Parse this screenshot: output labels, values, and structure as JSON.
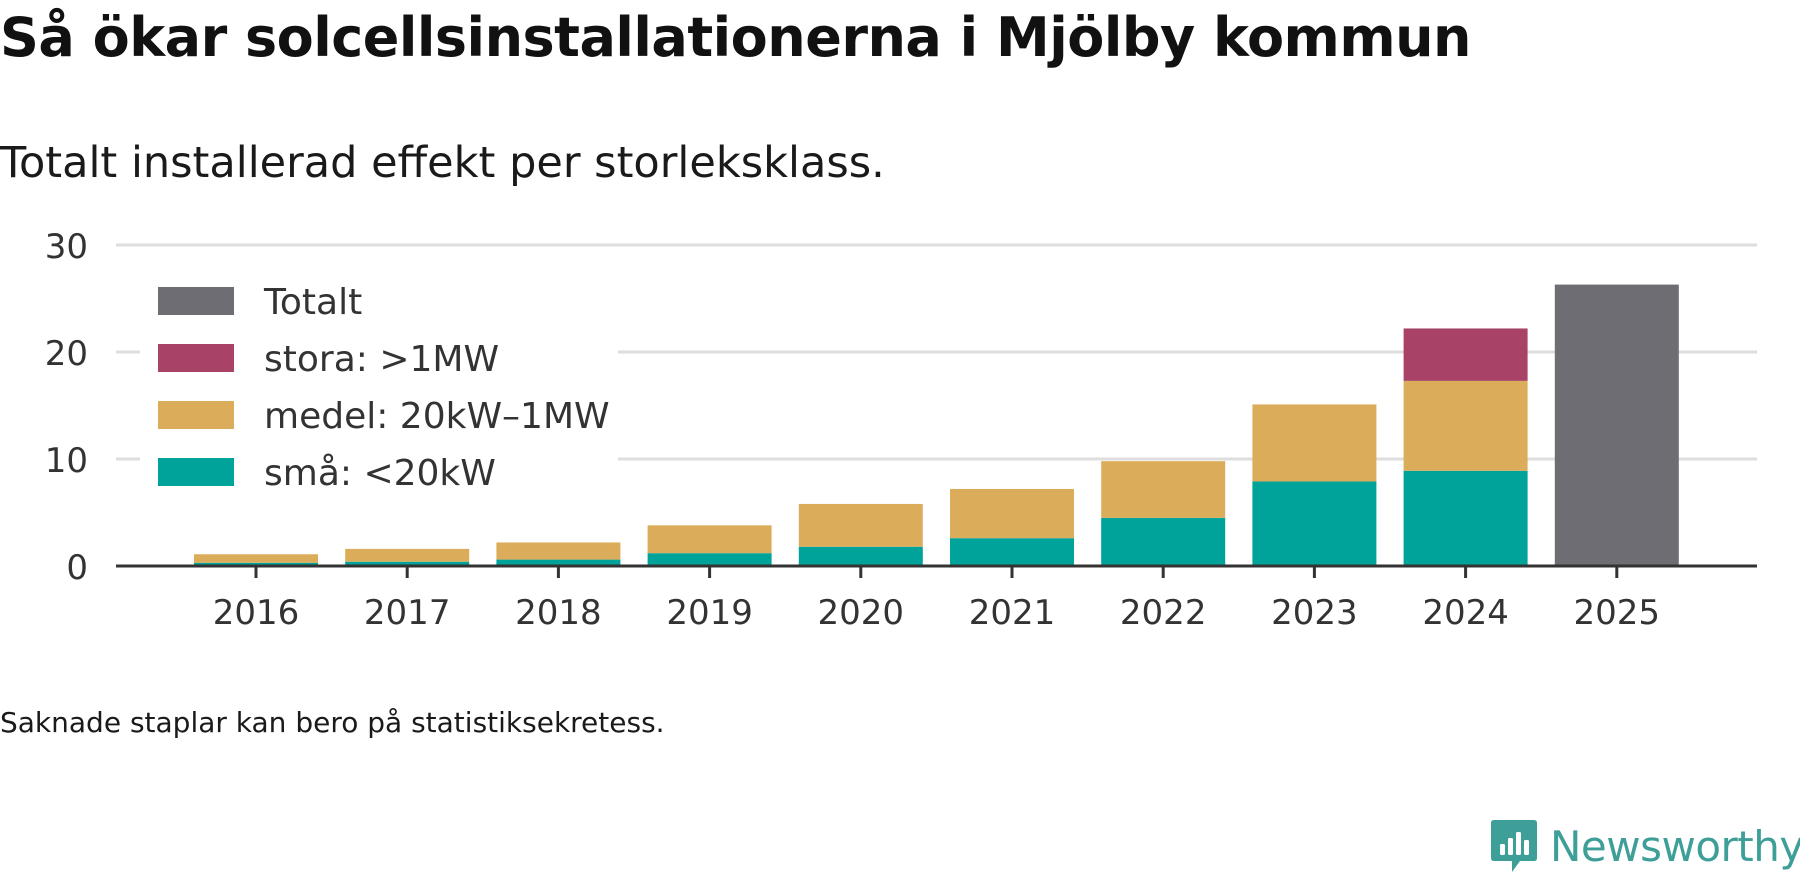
{
  "title": "Så ökar solcellsinstallationerna i Mjölby kommun",
  "subtitle": "Totalt installerad effekt per storleksklass.",
  "footnote": "Saknade staplar kan bero på statistiksekretess.",
  "brand": {
    "name": "Newsworthy",
    "icon": "newsworthy-logo-icon",
    "color": "#3e9e98"
  },
  "chart_data": {
    "type": "bar",
    "stacked": true,
    "title": "Så ökar solcellsinstallationerna i Mjölby kommun",
    "subtitle": "Totalt installerad effekt per storleksklass.",
    "xlabel": "",
    "ylabel": "",
    "ylim": [
      0,
      30
    ],
    "yticks": [
      "0",
      "10",
      "20",
      "30"
    ],
    "ytick_values": [
      0,
      10,
      20,
      30
    ],
    "grid": true,
    "legend_position": "top-left",
    "categories": [
      "2016",
      "2017",
      "2018",
      "2019",
      "2020",
      "2021",
      "2022",
      "2023",
      "2024",
      "2025"
    ],
    "series": [
      {
        "name": "små: <20kW",
        "color": "#00a39a",
        "values": [
          0.3,
          0.4,
          0.6,
          1.2,
          1.8,
          2.6,
          4.5,
          7.9,
          8.9,
          null
        ]
      },
      {
        "name": "medel: 20kW–1MW",
        "color": "#dbad5b",
        "values": [
          0.8,
          1.2,
          1.6,
          2.6,
          4.0,
          4.6,
          5.3,
          7.2,
          8.4,
          null
        ]
      },
      {
        "name": "stora: >1MW",
        "color": "#a84367",
        "values": [
          null,
          null,
          null,
          null,
          null,
          null,
          null,
          null,
          4.9,
          null
        ]
      },
      {
        "name": "Totalt",
        "color": "#6e6d73",
        "values": [
          null,
          null,
          null,
          null,
          null,
          null,
          null,
          null,
          null,
          26.3
        ]
      }
    ],
    "legend_order": [
      "Totalt",
      "stora: >1MW",
      "medel: 20kW–1MW",
      "små: <20kW"
    ]
  }
}
